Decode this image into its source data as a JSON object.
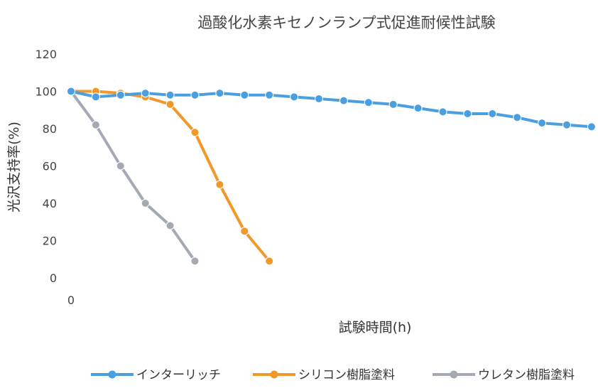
{
  "chart_data": {
    "type": "line",
    "title": "過酸化水素キセノンランプ式促進耐候性試験",
    "xlabel": "試験時間(h)",
    "ylabel": "光沢支持率(%)",
    "x_tick_labels": [
      "0"
    ],
    "ylim": [
      0,
      120
    ],
    "yticks": [
      0,
      20,
      40,
      60,
      80,
      100,
      120
    ],
    "grid": false,
    "legend_position": "bottom",
    "series": [
      {
        "name": "インターリッチ",
        "color": "#4a9fe0",
        "x": [
          0,
          1,
          2,
          3,
          4,
          5,
          6,
          7,
          8,
          9,
          10,
          11,
          12,
          13,
          14,
          15,
          16,
          17,
          18,
          19,
          20,
          21
        ],
        "values": [
          100,
          97,
          98,
          99,
          98,
          98,
          99,
          98,
          98,
          97,
          96,
          95,
          94,
          93,
          91,
          89,
          88,
          88,
          86,
          83,
          82,
          81
        ]
      },
      {
        "name": "シリコン樹脂塗料",
        "color": "#f0982a",
        "x": [
          0,
          1,
          2,
          3,
          4,
          5,
          6,
          7,
          8
        ],
        "values": [
          100,
          100,
          99,
          97,
          93,
          78,
          50,
          25,
          9
        ]
      },
      {
        "name": "ウレタン樹脂塗料",
        "color": "#a4aab4",
        "x": [
          0,
          1,
          2,
          3,
          4,
          5
        ],
        "values": [
          100,
          82,
          60,
          40,
          28,
          9
        ]
      }
    ]
  }
}
